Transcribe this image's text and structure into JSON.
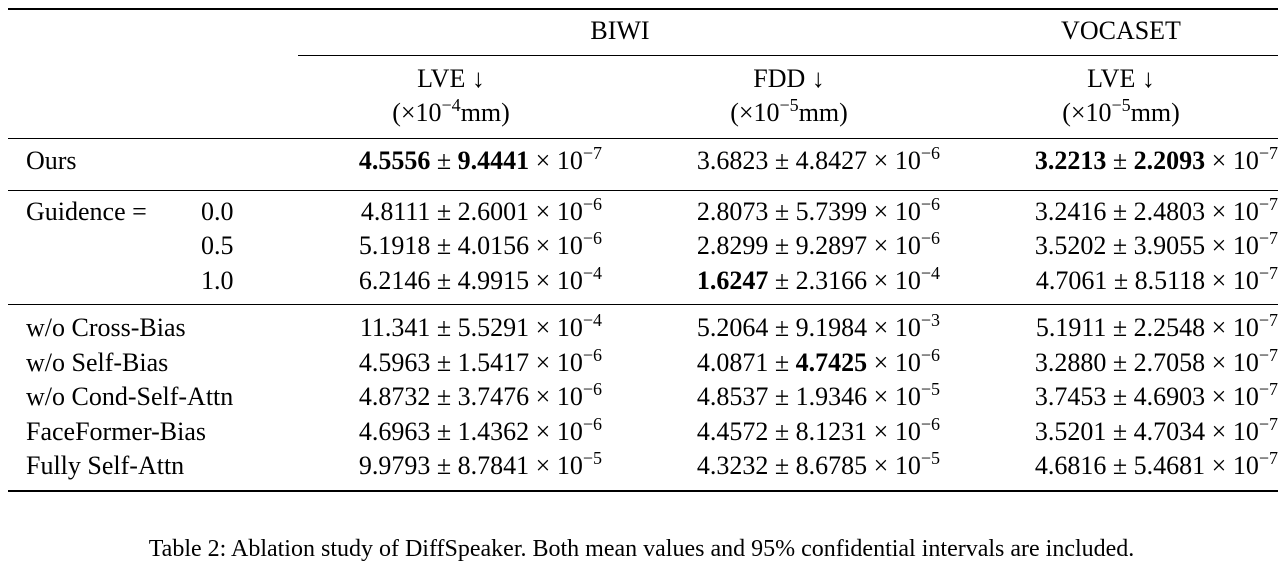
{
  "header": {
    "group_biwi": "BIWI",
    "group_vocaset": "VOCASET",
    "cols": [
      {
        "metric": "LVE ↓",
        "unit_prefix": "(×10",
        "unit_exp": "−4",
        "unit_suffix": "mm)"
      },
      {
        "metric": "FDD ↓",
        "unit_prefix": "(×10",
        "unit_exp": "−5",
        "unit_suffix": "mm)"
      },
      {
        "metric": "LVE ↓",
        "unit_prefix": "(×10",
        "unit_exp": "−5",
        "unit_suffix": "mm)"
      }
    ]
  },
  "guidance_label": "Guidence =",
  "rows": [
    {
      "label": "Ours",
      "cells": [
        {
          "mean": "4.5556",
          "ci": "9.4441",
          "exp": "−7",
          "mean_bold": true,
          "ci_bold": true
        },
        {
          "mean": "3.6823",
          "ci": "4.8427",
          "exp": "−6"
        },
        {
          "mean": "3.2213",
          "ci": "2.2093",
          "exp": "−7",
          "mean_bold": true,
          "ci_bold": true
        }
      ]
    },
    {
      "label": "0.0",
      "cells": [
        {
          "mean": "4.8111",
          "ci": "2.6001",
          "exp": "−6"
        },
        {
          "mean": "2.8073",
          "ci": "5.7399",
          "exp": "−6"
        },
        {
          "mean": "3.2416",
          "ci": "2.4803",
          "exp": "−7"
        }
      ]
    },
    {
      "label": "0.5",
      "cells": [
        {
          "mean": "5.1918",
          "ci": "4.0156",
          "exp": "−6"
        },
        {
          "mean": "2.8299",
          "ci": "9.2897",
          "exp": "−6"
        },
        {
          "mean": "3.5202",
          "ci": "3.9055",
          "exp": "−7"
        }
      ]
    },
    {
      "label": "1.0",
      "cells": [
        {
          "mean": "6.2146",
          "ci": "4.9915",
          "exp": "−4"
        },
        {
          "mean": "1.6247",
          "ci": "2.3166",
          "exp": "−4",
          "mean_bold": true
        },
        {
          "mean": "4.7061",
          "ci": "8.5118",
          "exp": "−7"
        }
      ]
    },
    {
      "label": "w/o Cross-Bias",
      "cells": [
        {
          "mean": "11.341",
          "ci": "5.5291",
          "exp": "−4"
        },
        {
          "mean": "5.2064",
          "ci": "9.1984",
          "exp": "−3"
        },
        {
          "mean": "5.1911",
          "ci": "2.2548",
          "exp": "−7"
        }
      ]
    },
    {
      "label": "w/o Self-Bias",
      "cells": [
        {
          "mean": "4.5963",
          "ci": "1.5417",
          "exp": "−6"
        },
        {
          "mean": "4.0871",
          "ci": "4.7425",
          "exp": "−6",
          "ci_bold": true
        },
        {
          "mean": "3.2880",
          "ci": "2.7058",
          "exp": "−7"
        }
      ]
    },
    {
      "label": "w/o Cond-Self-Attn",
      "cells": [
        {
          "mean": "4.8732",
          "ci": "3.7476",
          "exp": "−6"
        },
        {
          "mean": "4.8537",
          "ci": "1.9346",
          "exp": "−5"
        },
        {
          "mean": "3.7453",
          "ci": "4.6903",
          "exp": "−7"
        }
      ]
    },
    {
      "label": "FaceFormer-Bias",
      "cells": [
        {
          "mean": "4.6963",
          "ci": "1.4362",
          "exp": "−6"
        },
        {
          "mean": "4.4572",
          "ci": "8.1231",
          "exp": "−6"
        },
        {
          "mean": "3.5201",
          "ci": "4.7034",
          "exp": "−7"
        }
      ]
    },
    {
      "label": "Fully Self-Attn",
      "cells": [
        {
          "mean": "9.9793",
          "ci": "8.7841",
          "exp": "−5"
        },
        {
          "mean": "4.3232",
          "ci": "8.6785",
          "exp": "−5"
        },
        {
          "mean": "4.6816",
          "ci": "5.4681",
          "exp": "−7"
        }
      ]
    }
  ],
  "caption": "Table 2: Ablation study of DiffSpeaker. Both mean values and 95% confidential intervals are included."
}
